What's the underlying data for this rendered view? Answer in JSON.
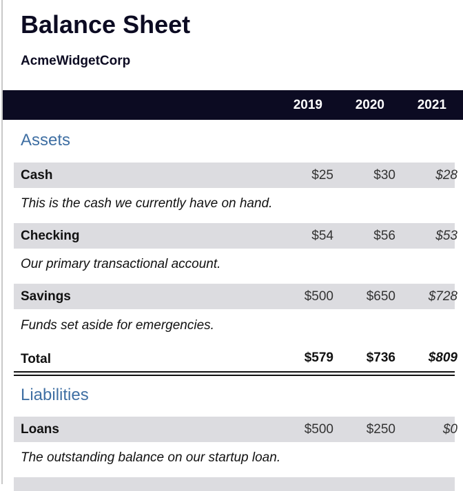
{
  "header": {
    "title": "Balance Sheet",
    "company": "AcmeWidgetCorp"
  },
  "years": [
    "2019",
    "2020",
    "2021"
  ],
  "assets": {
    "title": "Assets",
    "rows": [
      {
        "label": "Cash",
        "values": [
          "$25",
          "$30",
          "$28"
        ],
        "description": "This is the cash we currently have on hand."
      },
      {
        "label": "Checking",
        "values": [
          "$54",
          "$56",
          "$53"
        ],
        "description": "Our primary transactional account."
      },
      {
        "label": "Savings",
        "values": [
          "$500",
          "$650",
          "$728"
        ],
        "description": "Funds set aside for emergencies."
      }
    ],
    "total": {
      "label": "Total",
      "values": [
        "$579",
        "$736",
        "$809"
      ]
    }
  },
  "liabilities": {
    "title": "Liabilities",
    "rows": [
      {
        "label": "Loans",
        "values": [
          "$500",
          "$250",
          "$0"
        ],
        "description": "The outstanding balance on our startup loan."
      }
    ]
  },
  "colors": {
    "header_bar": "#0c0b22",
    "section_title": "#3f6fa3",
    "row_background": "#dcdce0"
  }
}
